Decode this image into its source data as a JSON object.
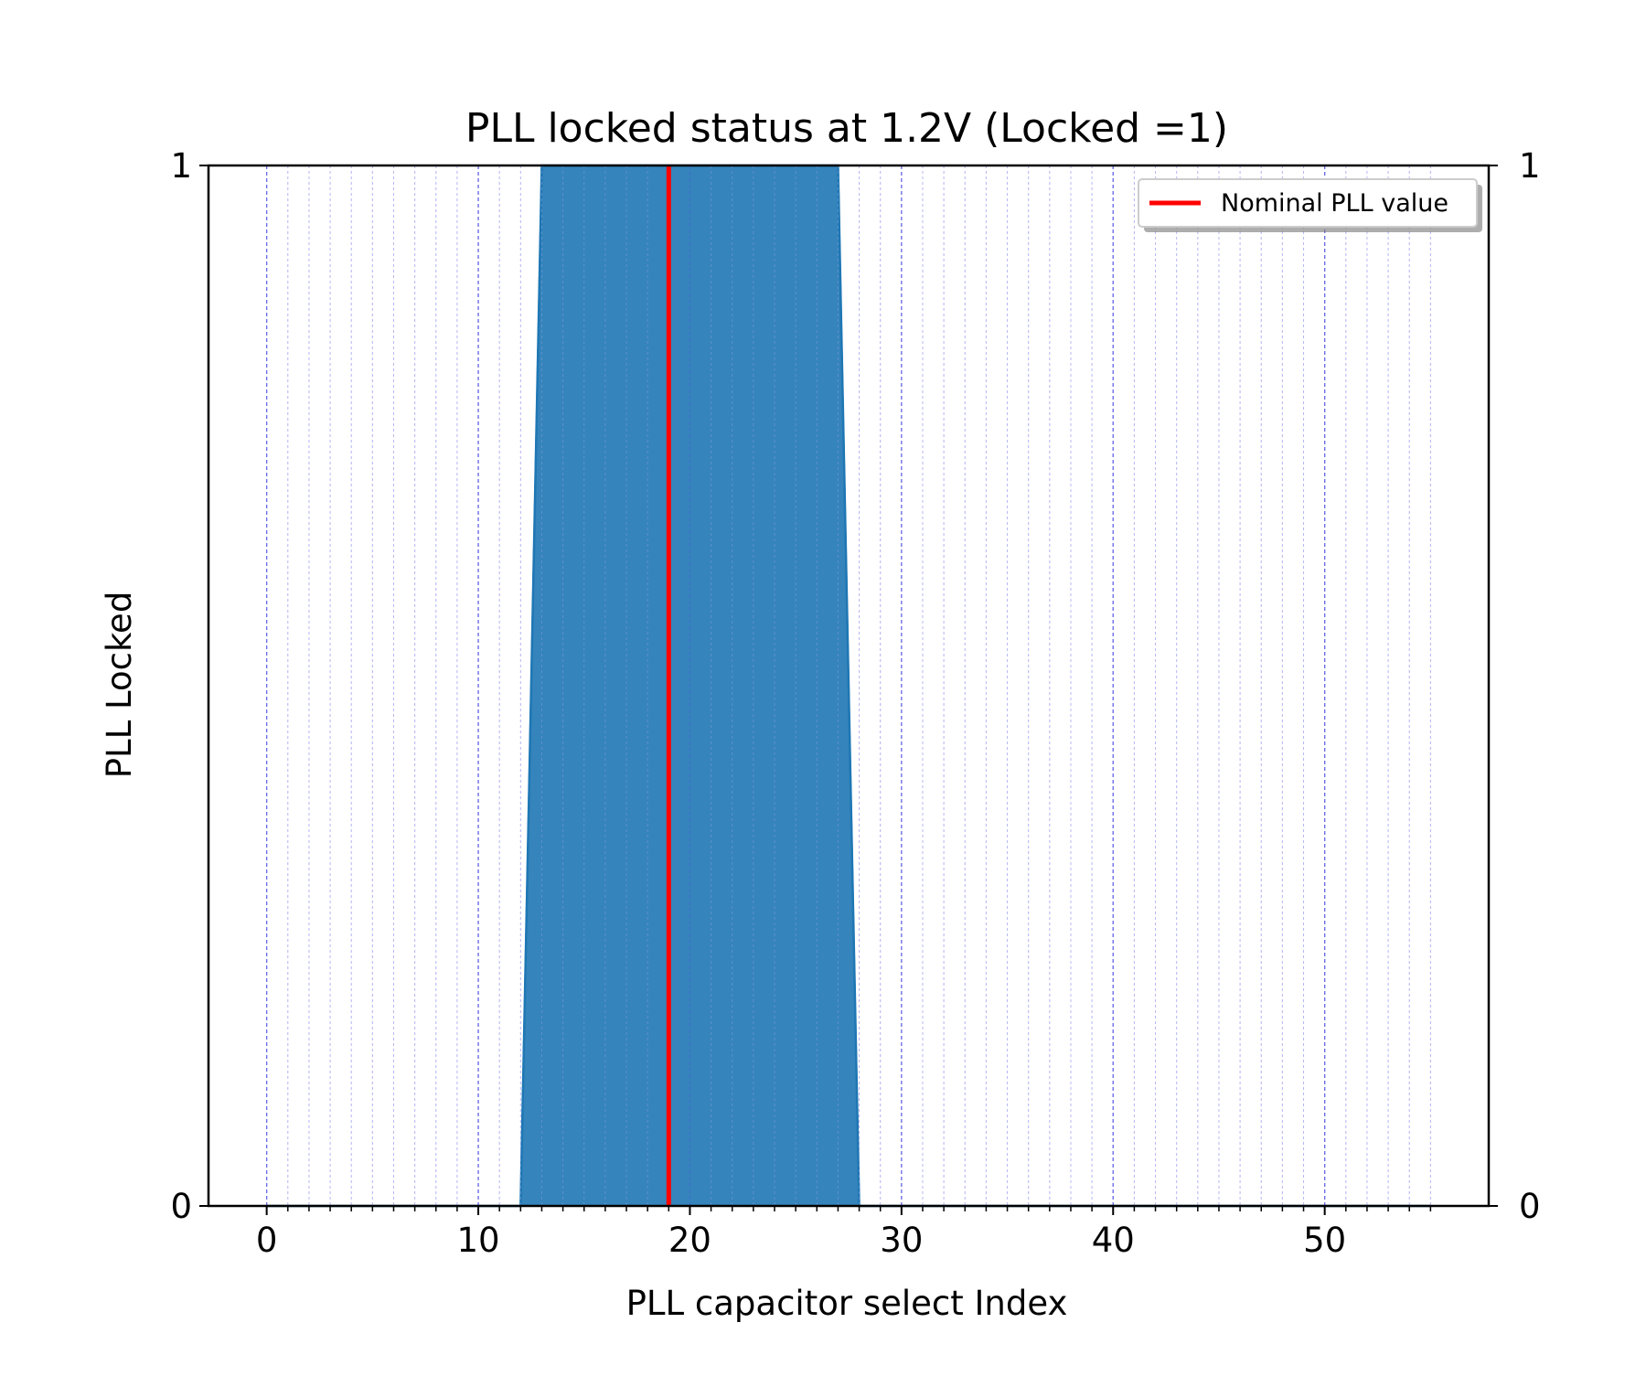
{
  "chart_data": {
    "type": "area",
    "title": "PLL locked status at 1.2V (Locked =1)",
    "xlabel": "PLL capacitor select Index",
    "ylabel": "PLL Locked",
    "xlim": [
      -2.75,
      57.75
    ],
    "ylim": [
      0,
      1
    ],
    "x_major_ticks": [
      0,
      10,
      20,
      30,
      40,
      50
    ],
    "x_minor_step": 1,
    "x_tick_labels": [
      "0",
      "10",
      "20",
      "30",
      "40",
      "50"
    ],
    "y_ticks": [
      0,
      1
    ],
    "y_tick_labels": [
      "0",
      "1"
    ],
    "right_y_tick_labels": [
      "0",
      "1"
    ],
    "grid": "vertical, major and minor, dashed blue",
    "series": [
      {
        "x": [
          0,
          1,
          2,
          3,
          4,
          5,
          6,
          7,
          8,
          9,
          10,
          11,
          12,
          13,
          14,
          15,
          16,
          17,
          18,
          19,
          20,
          21,
          22,
          23,
          24,
          25,
          26,
          27,
          28,
          29,
          30,
          31,
          32,
          33,
          34,
          35,
          36,
          37,
          38,
          39,
          40,
          41,
          42,
          43,
          44,
          45,
          46,
          47,
          48,
          49,
          50,
          51,
          52,
          53,
          54,
          55
        ],
        "values": [
          0,
          0,
          0,
          0,
          0,
          0,
          0,
          0,
          0,
          0,
          0,
          0,
          0,
          1,
          1,
          1,
          1,
          1,
          1,
          1,
          1,
          1,
          1,
          1,
          1,
          1,
          1,
          1,
          0,
          0,
          0,
          0,
          0,
          0,
          0,
          0,
          0,
          0,
          0,
          0,
          0,
          0,
          0,
          0,
          0,
          0,
          0,
          0,
          0,
          0,
          0,
          0,
          0,
          0,
          0,
          0
        ],
        "color": "#1f77b4"
      }
    ],
    "vertical_lines": [
      {
        "name": "Nominal PLL value",
        "x": 19,
        "color": "#ff0000"
      }
    ],
    "legend": {
      "placement": "upper right",
      "entries": [
        {
          "label": "Nominal PLL value",
          "color": "#ff0000"
        }
      ]
    }
  }
}
